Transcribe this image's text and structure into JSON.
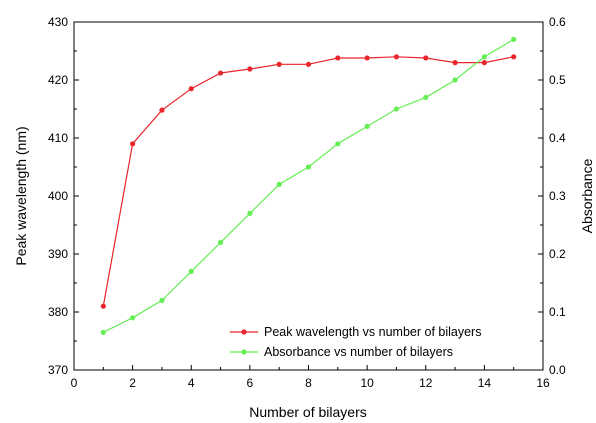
{
  "chart_data": {
    "type": "line",
    "xlabel": "Number of bilayers",
    "ylabel_left": "Peak wavelength (nm)",
    "ylabel_right": "Absorbance",
    "xlim": [
      0,
      16
    ],
    "ylim_left": [
      370,
      430
    ],
    "ylim_right": [
      0.0,
      0.6
    ],
    "x_ticks": [
      "0",
      "2",
      "4",
      "6",
      "8",
      "10",
      "12",
      "14",
      "16"
    ],
    "y_left_ticks": [
      "370",
      "380",
      "390",
      "400",
      "410",
      "420",
      "430"
    ],
    "y_right_ticks": [
      "0.0",
      "0.1",
      "0.2",
      "0.3",
      "0.4",
      "0.5",
      "0.6"
    ],
    "grid": false,
    "legend_position": "bottom-right",
    "series": [
      {
        "name": "Peak wavelength vs number of bilayers",
        "axis": "left",
        "color": "#e8262b",
        "x": [
          1,
          2,
          3,
          4,
          5,
          6,
          7,
          8,
          9,
          10,
          11,
          12,
          13,
          14,
          15
        ],
        "values": [
          381,
          409,
          414.8,
          418.5,
          421.2,
          421.9,
          422.7,
          422.7,
          423.8,
          423.8,
          424.0,
          423.8,
          423.0,
          423.0,
          424.0
        ]
      },
      {
        "name": "Absorbance vs number of bilayers",
        "axis": "right",
        "color": "#66ee55",
        "x": [
          1,
          2,
          3,
          4,
          5,
          6,
          7,
          8,
          9,
          10,
          11,
          12,
          13,
          14,
          15
        ],
        "values": [
          0.065,
          0.09,
          0.12,
          0.17,
          0.22,
          0.27,
          0.32,
          0.35,
          0.39,
          0.42,
          0.45,
          0.47,
          0.5,
          0.54,
          0.57
        ]
      }
    ]
  }
}
